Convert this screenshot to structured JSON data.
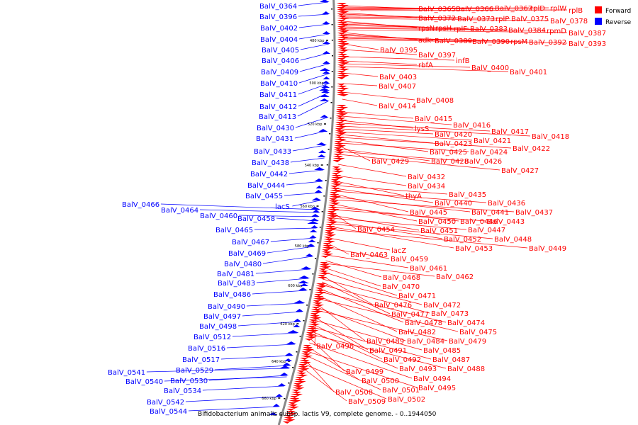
{
  "title": "Bifidobacterium animalis subsp. lactis V9, complete genome. - 0..1944050",
  "legend": {
    "forward": {
      "label": "Forward",
      "color": "#ff0000"
    },
    "reverse": {
      "label": "Reverse",
      "color": "#0000ff"
    }
  },
  "colors": {
    "forward": "#ff0000",
    "reverse": "#0000ff",
    "backbone": "#888888"
  },
  "ticks": [
    "480 kbp",
    "500 kbp",
    "520 kbp",
    "540 kbp",
    "560 kbp",
    "580 kbp",
    "600 kbp",
    "620 kbp",
    "640 kbp",
    "660 kbp"
  ],
  "reverse_labels": [
    "BalV_0364",
    "BalV_0396",
    "BalV_0402",
    "BalV_0404",
    "BalV_0405",
    "BalV_0406",
    "BalV_0409",
    "BalV_0410",
    "BalV_0411",
    "BalV_0412",
    "BalV_0413",
    "BalV_0430",
    "BalV_0431",
    "BalV_0433",
    "BalV_0438",
    "BalV_0442",
    "BalV_0444",
    "BalV_0455",
    "lacS",
    "BalV_0466",
    "BalV_0464",
    "BalV_0460",
    "BalV_0458",
    "BalV_0465",
    "BalV_0467",
    "BalV_0469",
    "BalV_0480",
    "BalV_0481",
    "BalV_0483",
    "BalV_0486",
    "BalV_0490",
    "BalV_0497",
    "BalV_0498",
    "BalV_0512",
    "BalV_0516",
    "BalV_0517",
    "BalV_0529",
    "BalV_0541",
    "BalV_0530",
    "BalV_0540",
    "BalV_0534",
    "BalV_0542",
    "BalV_0544"
  ],
  "forward_labels": [
    "BalV_0365",
    "BalV_0366",
    "BalV_0367",
    "rplD",
    "rplW",
    "rplB",
    "BalV_0372",
    "BalV_0373",
    "rplP",
    "BalV_0375",
    "BalV_0378",
    "rpsN",
    "rpsH",
    "rplF",
    "BalV_0383",
    "BalV_0384",
    "rpmD",
    "BalV_0387",
    "adk",
    "BalV_0389",
    "BalV_0390",
    "rpsM",
    "BalV_0392",
    "BalV_0393",
    "BalV_0395",
    "BalV_0397",
    "infB",
    "rbfA",
    "BalV_0400",
    "BalV_0401",
    "BalV_0403",
    "BalV_0407",
    "BalV_0408",
    "BalV_0414",
    "BalV_0415",
    "BalV_0416",
    "lysS",
    "BalV_0417",
    "BalV_0418",
    "BalV_0420",
    "BalV_0421",
    "BalV_0423",
    "BalV_0422",
    "BalV_0425",
    "BalV_0424",
    "BalV_0429",
    "BalV_0428",
    "BalV_0426",
    "BalV_0427",
    "BalV_0432",
    "BalV_0434",
    "thyA",
    "BalV_0435",
    "BalV_0440",
    "BalV_0436",
    "BalV_0445",
    "BalV_0441",
    "BalV_0437",
    "BalV_0450",
    "BalV_0446",
    "BalV_0443",
    "BalV_0454",
    "BalV_0451",
    "BalV_0447",
    "BalV_0452",
    "BalV_0448",
    "BalV_0453",
    "BalV_0449",
    "lacZ",
    "BalV_0463",
    "BalV_0459",
    "BalV_0461",
    "BalV_0468",
    "BalV_0462",
    "BalV_0470",
    "BalV_0471",
    "BalV_0476",
    "BalV_0472",
    "BalV_0477",
    "BalV_0473",
    "BalV_0478",
    "BalV_0474",
    "BalV_0482",
    "BalV_0475",
    "BalV_0489",
    "BalV_0484",
    "BalV_0479",
    "BalV_0496",
    "BalV_0491",
    "BalV_0485",
    "BalV_0492",
    "BalV_0487",
    "BalV_0493",
    "BalV_0488",
    "BalV_0499",
    "BalV_0494",
    "BalV_0500",
    "BalV_0495",
    "BalV_0501",
    "BalV_0508",
    "BalV_0502",
    "BalV_0509"
  ]
}
